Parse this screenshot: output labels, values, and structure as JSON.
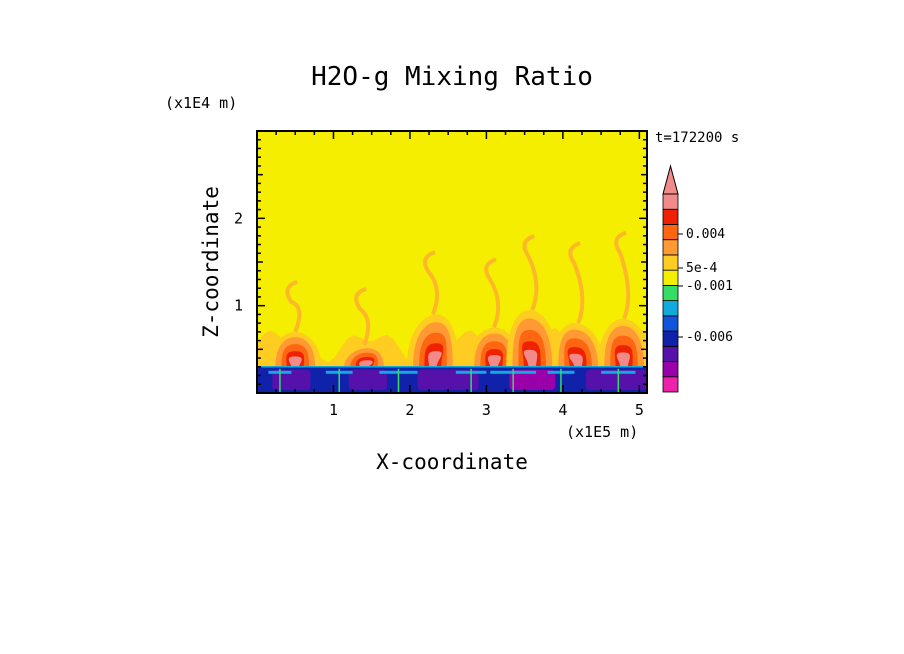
{
  "chart_data": {
    "type": "heatmap",
    "title": "H2O-g Mixing Ratio",
    "xlabel": "X-coordinate",
    "ylabel": "Z-coordinate",
    "x_scale_label": "(x1E5 m)",
    "y_scale_label": "(x1E4 m)",
    "time_label": "t=172200 s",
    "xlim": [
      0,
      5.1
    ],
    "ylim": [
      0,
      3.0
    ],
    "x_ticks": [
      1,
      2,
      3,
      4,
      5
    ],
    "y_ticks": [
      1,
      2
    ],
    "colorbar": {
      "labels": [
        {
          "text": "0.004",
          "value": 0.004
        },
        {
          "text": "5e-4",
          "value": 0.0005
        },
        {
          "text": "-0.001",
          "value": -0.001
        },
        {
          "text": "-0.006",
          "value": -0.006
        }
      ],
      "colors": [
        "#ee22aa",
        "#9900aa",
        "#5511aa",
        "#1122aa",
        "#1155dd",
        "#11aadd",
        "#33dd66",
        "#f5ee00",
        "#ffcc22",
        "#ff9933",
        "#ff6611",
        "#ee2200",
        "#f28a8a"
      ],
      "extend_top": true
    },
    "field_summary": {
      "background_value_color": "#f5ee00",
      "boundary_layer_top": 0.3,
      "plumes": [
        {
          "x": 0.5,
          "top": 0.7
        },
        {
          "x": 1.4,
          "top": 0.55
        },
        {
          "x": 2.3,
          "top": 0.9
        },
        {
          "x": 3.1,
          "top": 0.75
        },
        {
          "x": 3.6,
          "top": 0.95
        },
        {
          "x": 4.2,
          "top": 0.8
        },
        {
          "x": 4.8,
          "top": 0.85
        }
      ]
    }
  }
}
